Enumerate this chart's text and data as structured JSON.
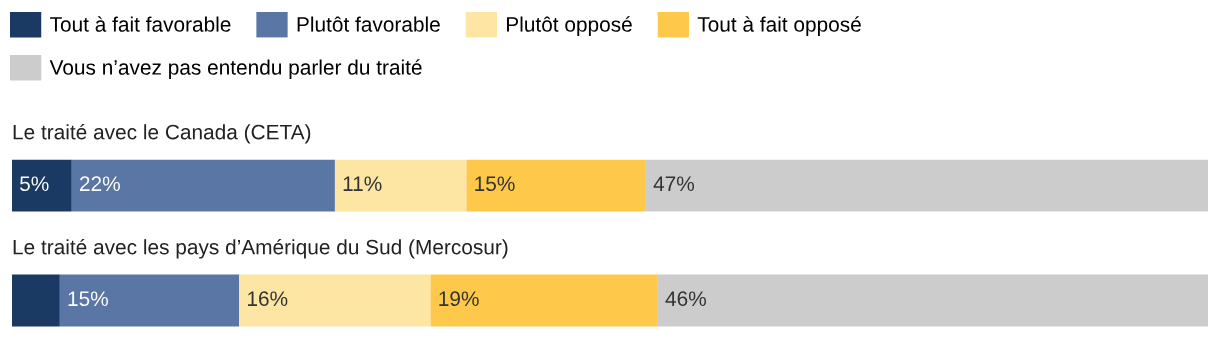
{
  "chart_data": {
    "type": "bar",
    "orientation": "horizontal",
    "stacked": true,
    "categories": [
      "Le traité avec le Canada (CETA)",
      "Le traité avec les pays d’Amérique du Sud (Mercosur)"
    ],
    "series": [
      {
        "name": "Tout à fait favorable",
        "color": "#1a3a63",
        "values": [
          5,
          4
        ],
        "value_labels": [
          "5%",
          null
        ]
      },
      {
        "name": "Plutôt favorable",
        "color": "#5a76a5",
        "values": [
          22,
          15
        ],
        "value_labels": [
          "22%",
          "15%"
        ]
      },
      {
        "name": "Plutôt opposé",
        "color": "#fde5a3",
        "values": [
          11,
          16
        ],
        "value_labels": [
          "11%",
          "16%"
        ]
      },
      {
        "name": "Tout à fait opposé",
        "color": "#fec84a",
        "values": [
          15,
          19
        ],
        "value_labels": [
          "15%",
          "19%"
        ]
      },
      {
        "name": "Vous n’avez pas entendu parler du traité",
        "color": "#cccccc",
        "values": [
          47,
          46
        ],
        "value_labels": [
          "47%",
          "46%"
        ]
      }
    ],
    "xlim": [
      0,
      100
    ],
    "tick_labels": false,
    "legend": "top"
  }
}
